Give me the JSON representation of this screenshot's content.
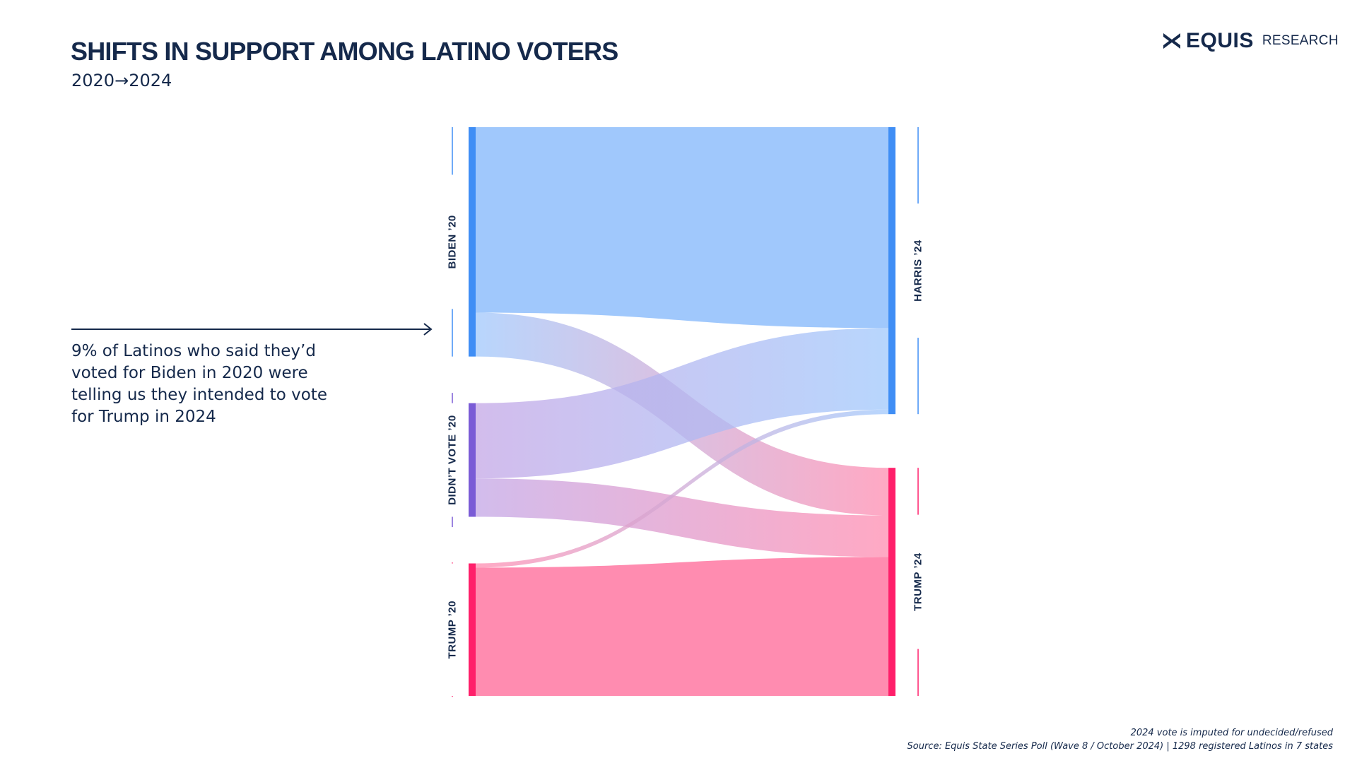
{
  "header": {
    "title": "SHIFTS IN SUPPORT AMONG LATINO VOTERS",
    "subtitle": "2020→2024"
  },
  "logo": {
    "name": "EQUIS",
    "tagline": "RESEARCH",
    "icon": "x-mark-icon"
  },
  "annotation": {
    "text": "9% of Latinos who said they’d voted for Biden in 2020 were telling us they intended to vote for Trump in 2024"
  },
  "footer": {
    "note": "2024 vote is imputed for undecided/refused",
    "source": "Source: Equis State Series Poll (Wave 8 / October 2024) | 1298 registered Latinos in 7 states"
  },
  "chart_data": {
    "type": "sankey",
    "source_nodes": [
      {
        "id": "biden20",
        "label": "BIDEN ’20",
        "color": "#3f8ef5"
      },
      {
        "id": "didnt20",
        "label": "DIDN’T VOTE ’20",
        "color": "#7a5bd6"
      },
      {
        "id": "trump20",
        "label": "TRUMP ’20",
        "color": "#ff1f6a"
      }
    ],
    "target_nodes": [
      {
        "id": "harris24",
        "label": "HARRIS ’24",
        "color": "#3f8ef5"
      },
      {
        "id": "trump24",
        "label": "TRUMP ’24",
        "color": "#ff1f6a"
      }
    ],
    "link_colors": {
      "harris24": "#a0c8fc",
      "trump24": "#ff8cb0",
      "biden20": "#a0c8fc",
      "didnt20": "#c3a6e6",
      "trump20": "#ff8cb0"
    },
    "flows": [
      {
        "from": "biden20",
        "to": "harris24",
        "value": 26.6
      },
      {
        "from": "biden20",
        "to": "trump24",
        "value": 6.3
      },
      {
        "from": "didnt20",
        "to": "harris24",
        "value": 10.8
      },
      {
        "from": "didnt20",
        "to": "trump24",
        "value": 5.5
      },
      {
        "from": "trump20",
        "to": "harris24",
        "value": 0.6
      },
      {
        "from": "trump20",
        "to": "trump24",
        "value": 18.4
      }
    ]
  }
}
